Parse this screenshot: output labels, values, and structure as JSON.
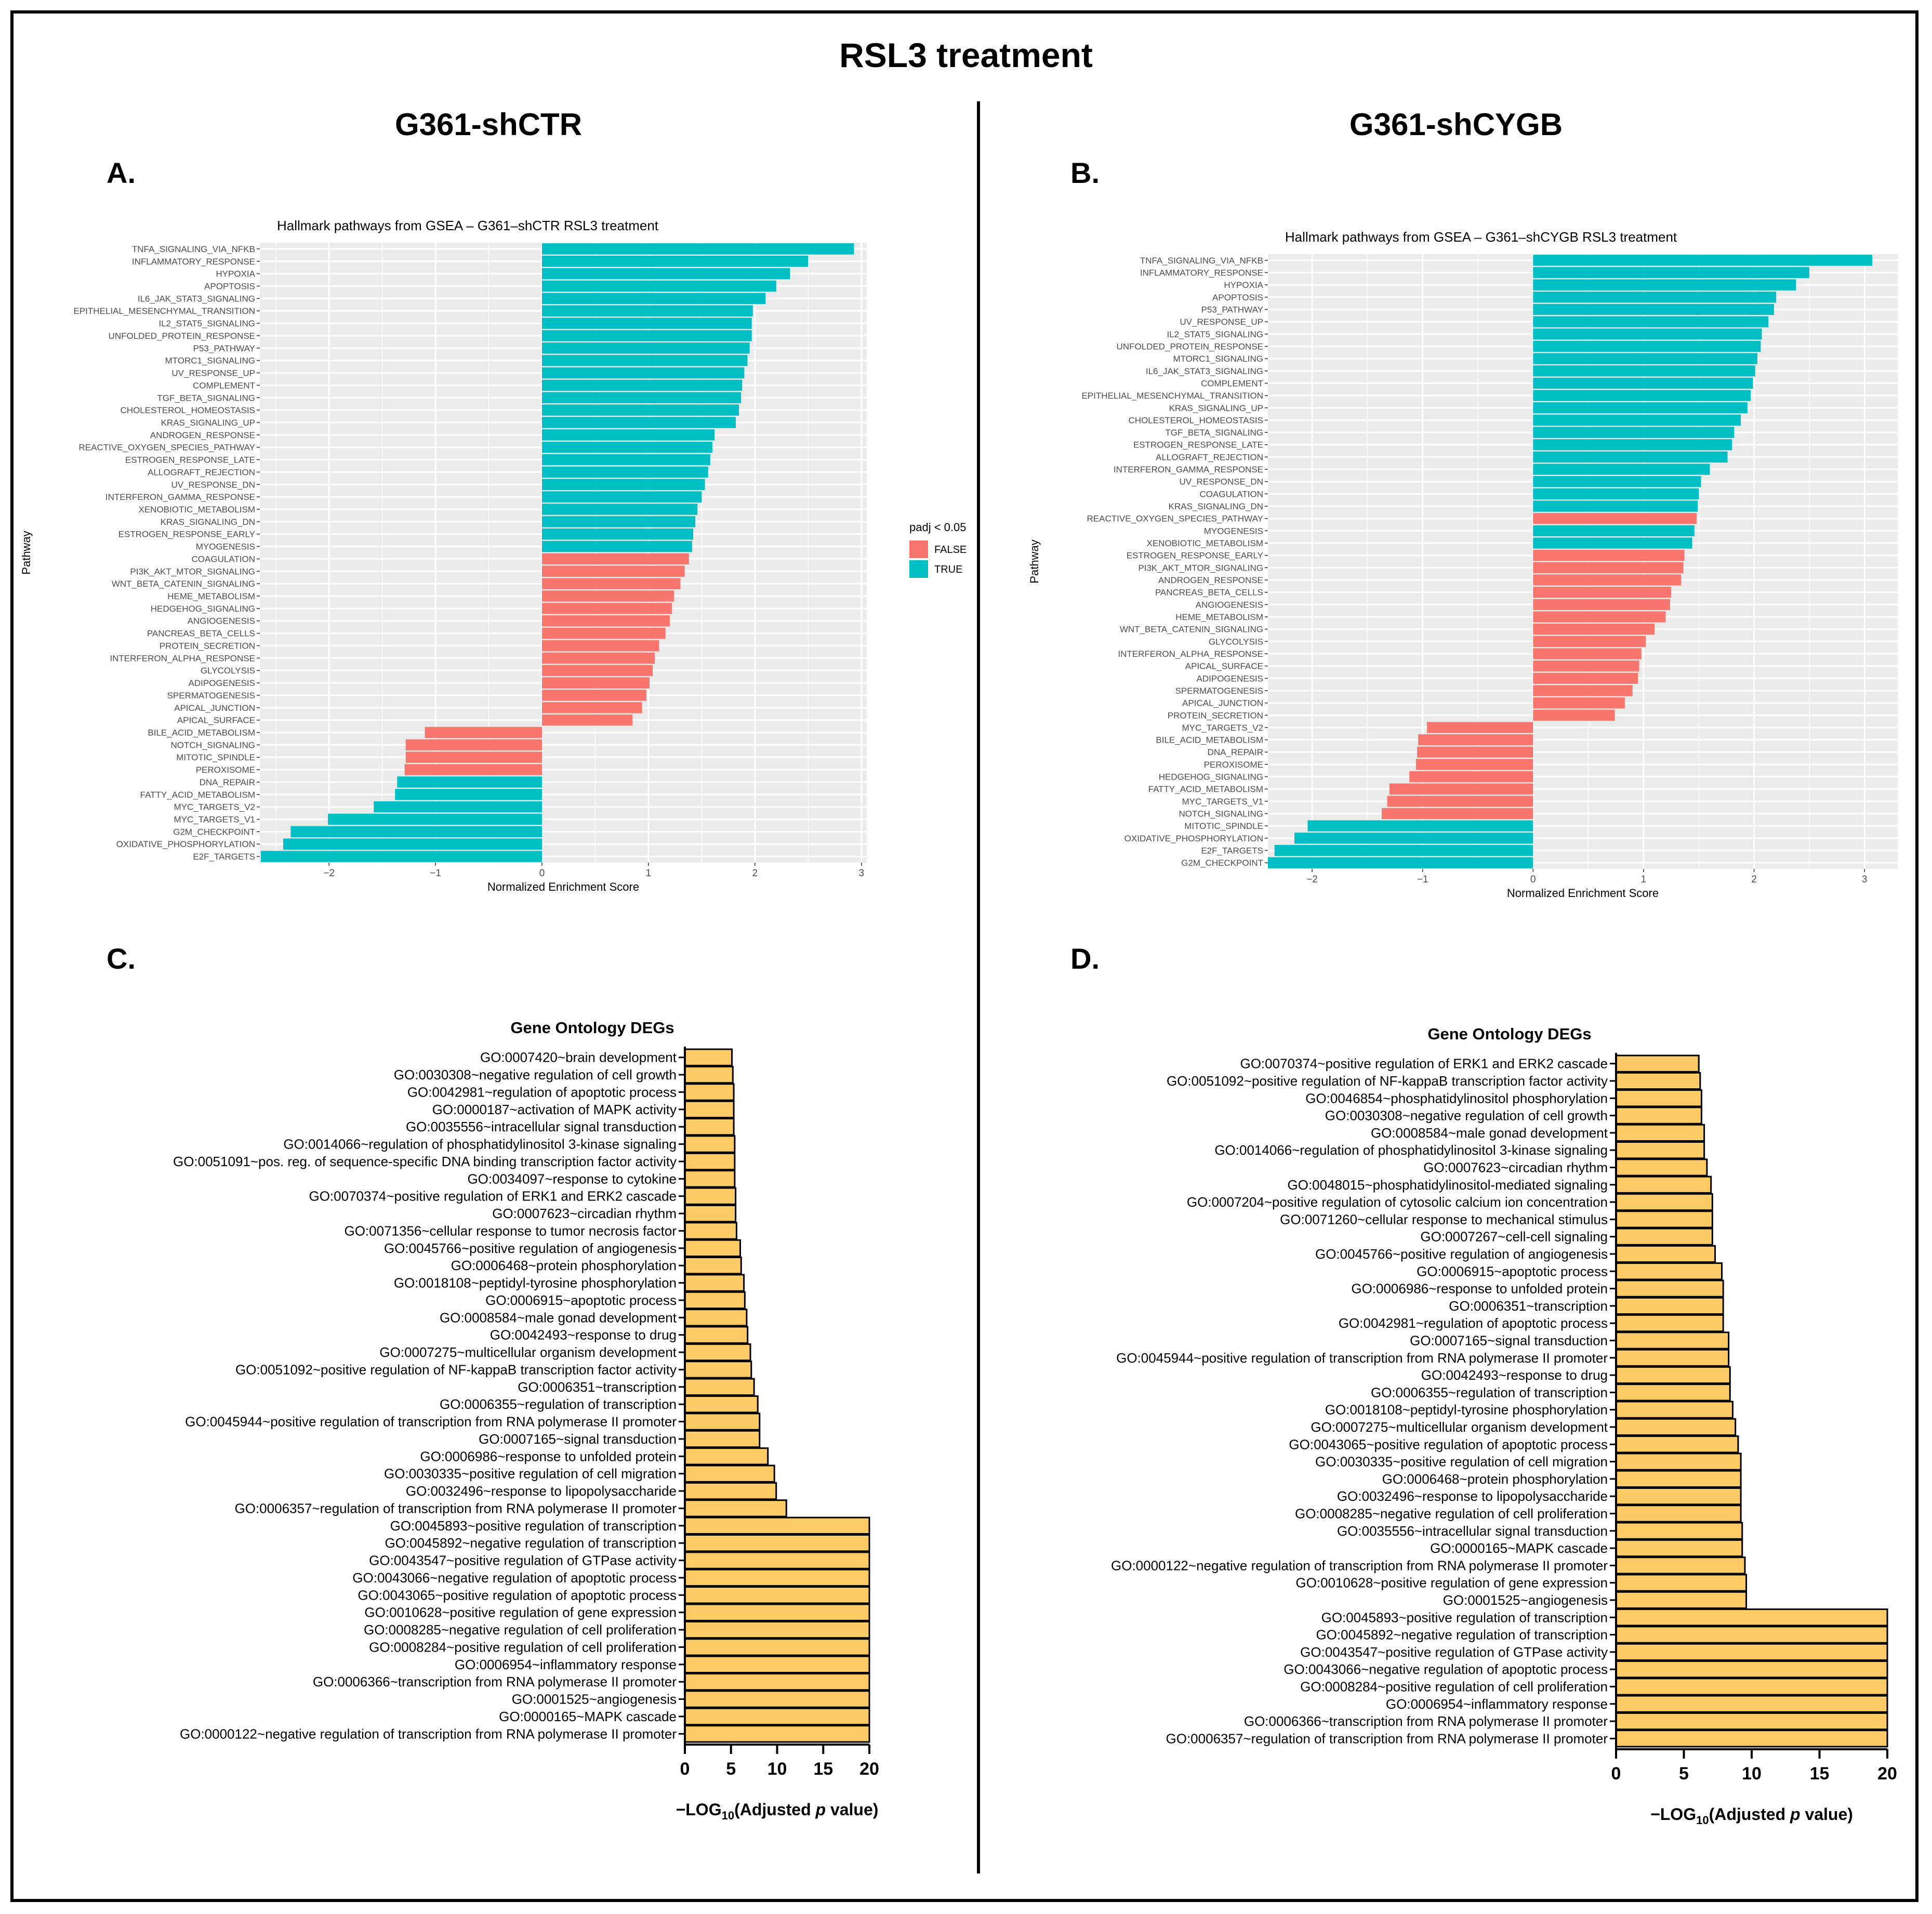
{
  "header": {
    "title": "RSL3 treatment",
    "left_column": "G361-shCTR",
    "right_column": "G361-shCYGB"
  },
  "panels": {
    "a": "A.",
    "b": "B.",
    "c": "C.",
    "d": "D."
  },
  "colors": {
    "padj_false": "#F8766D",
    "padj_true": "#00BFC4",
    "go_bar": "#FFCB66",
    "panel_bg": "#EBEBEB",
    "gridline": "#FFFFFF"
  },
  "chart_data": [
    {
      "id": "gsea-shctr",
      "type": "bar",
      "orientation": "horizontal",
      "title": "Hallmark pathways from GSEA – G361–shCTR RSL3 treatment",
      "xlabel": "Normalized Enrichment Score",
      "ylabel": "Pathway",
      "xlim": [
        -2.65,
        3.05
      ],
      "xticks": [
        -2,
        -1,
        0,
        1,
        2,
        3
      ],
      "xtick_labels": [
        "−2",
        "−1",
        "0",
        "1",
        "2",
        "3"
      ],
      "grid": true,
      "legend": {
        "title": "padj < 0.05",
        "entries": [
          "FALSE",
          "TRUE"
        ],
        "position": "right"
      },
      "categories": [
        "TNFA_SIGNALING_VIA_NFKB",
        "INFLAMMATORY_RESPONSE",
        "HYPOXIA",
        "APOPTOSIS",
        "IL6_JAK_STAT3_SIGNALING",
        "EPITHELIAL_MESENCHYMAL_TRANSITION",
        "IL2_STAT5_SIGNALING",
        "UNFOLDED_PROTEIN_RESPONSE",
        "P53_PATHWAY",
        "MTORC1_SIGNALING",
        "UV_RESPONSE_UP",
        "COMPLEMENT",
        "TGF_BETA_SIGNALING",
        "CHOLESTEROL_HOMEOSTASIS",
        "KRAS_SIGNALING_UP",
        "ANDROGEN_RESPONSE",
        "REACTIVE_OXYGEN_SPECIES_PATHWAY",
        "ESTROGEN_RESPONSE_LATE",
        "ALLOGRAFT_REJECTION",
        "UV_RESPONSE_DN",
        "INTERFERON_GAMMA_RESPONSE",
        "XENOBIOTIC_METABOLISM",
        "KRAS_SIGNALING_DN",
        "ESTROGEN_RESPONSE_EARLY",
        "MYOGENESIS",
        "COAGULATION",
        "PI3K_AKT_MTOR_SIGNALING",
        "WNT_BETA_CATENIN_SIGNALING",
        "HEME_METABOLISM",
        "HEDGEHOG_SIGNALING",
        "ANGIOGENESIS",
        "PANCREAS_BETA_CELLS",
        "PROTEIN_SECRETION",
        "INTERFERON_ALPHA_RESPONSE",
        "GLYCOLYSIS",
        "ADIPOGENESIS",
        "SPERMATOGENESIS",
        "APICAL_JUNCTION",
        "APICAL_SURFACE",
        "BILE_ACID_METABOLISM",
        "NOTCH_SIGNALING",
        "MITOTIC_SPINDLE",
        "PEROXISOME",
        "DNA_REPAIR",
        "FATTY_ACID_METABOLISM",
        "MYC_TARGETS_V2",
        "MYC_TARGETS_V1",
        "G2M_CHECKPOINT",
        "OXIDATIVE_PHOSPHORYLATION",
        "E2F_TARGETS"
      ],
      "values": [
        2.93,
        2.5,
        2.33,
        2.2,
        2.1,
        1.98,
        1.97,
        1.97,
        1.95,
        1.93,
        1.9,
        1.88,
        1.87,
        1.85,
        1.82,
        1.62,
        1.6,
        1.58,
        1.56,
        1.53,
        1.5,
        1.46,
        1.44,
        1.42,
        1.41,
        1.38,
        1.34,
        1.3,
        1.24,
        1.22,
        1.2,
        1.16,
        1.1,
        1.06,
        1.04,
        1.01,
        0.98,
        0.94,
        0.85,
        -1.1,
        -1.28,
        -1.28,
        -1.29,
        -1.36,
        -1.38,
        -1.58,
        -2.01,
        -2.36,
        -2.43,
        -2.64
      ],
      "significant": [
        true,
        true,
        true,
        true,
        true,
        true,
        true,
        true,
        true,
        true,
        true,
        true,
        true,
        true,
        true,
        true,
        true,
        true,
        true,
        true,
        true,
        true,
        true,
        true,
        true,
        false,
        false,
        false,
        false,
        false,
        false,
        false,
        false,
        false,
        false,
        false,
        false,
        false,
        false,
        false,
        false,
        false,
        false,
        true,
        true,
        true,
        true,
        true,
        true,
        true
      ]
    },
    {
      "id": "gsea-shcygb",
      "type": "bar",
      "orientation": "horizontal",
      "title": "Hallmark pathways from GSEA – G361–shCYGB RSL3 treatment",
      "xlabel": "Normalized Enrichment Score",
      "ylabel": "Pathway",
      "xlim": [
        -2.4,
        3.3
      ],
      "xticks": [
        -2,
        -1,
        0,
        1,
        2,
        3
      ],
      "xtick_labels": [
        "−2",
        "−1",
        "0",
        "1",
        "2",
        "3"
      ],
      "grid": true,
      "categories": [
        "TNFA_SIGNALING_VIA_NFKB",
        "INFLAMMATORY_RESPONSE",
        "HYPOXIA",
        "APOPTOSIS",
        "P53_PATHWAY",
        "UV_RESPONSE_UP",
        "IL2_STAT5_SIGNALING",
        "UNFOLDED_PROTEIN_RESPONSE",
        "MTORC1_SIGNALING",
        "IL6_JAK_STAT3_SIGNALING",
        "COMPLEMENT",
        "EPITHELIAL_MESENCHYMAL_TRANSITION",
        "KRAS_SIGNALING_UP",
        "CHOLESTEROL_HOMEOSTASIS",
        "TGF_BETA_SIGNALING",
        "ESTROGEN_RESPONSE_LATE",
        "ALLOGRAFT_REJECTION",
        "INTERFERON_GAMMA_RESPONSE",
        "UV_RESPONSE_DN",
        "COAGULATION",
        "KRAS_SIGNALING_DN",
        "REACTIVE_OXYGEN_SPECIES_PATHWAY",
        "MYOGENESIS",
        "XENOBIOTIC_METABOLISM",
        "ESTROGEN_RESPONSE_EARLY",
        "PI3K_AKT_MTOR_SIGNALING",
        "ANDROGEN_RESPONSE",
        "PANCREAS_BETA_CELLS",
        "ANGIOGENESIS",
        "HEME_METABOLISM",
        "WNT_BETA_CATENIN_SIGNALING",
        "GLYCOLYSIS",
        "INTERFERON_ALPHA_RESPONSE",
        "APICAL_SURFACE",
        "ADIPOGENESIS",
        "SPERMATOGENESIS",
        "APICAL_JUNCTION",
        "PROTEIN_SECRETION",
        "MYC_TARGETS_V2",
        "BILE_ACID_METABOLISM",
        "DNA_REPAIR",
        "PEROXISOME",
        "HEDGEHOG_SIGNALING",
        "FATTY_ACID_METABOLISM",
        "MYC_TARGETS_V1",
        "NOTCH_SIGNALING",
        "MITOTIC_SPINDLE",
        "OXIDATIVE_PHOSPHORYLATION",
        "E2F_TARGETS",
        "G2M_CHECKPOINT"
      ],
      "values": [
        3.07,
        2.5,
        2.38,
        2.2,
        2.18,
        2.13,
        2.07,
        2.06,
        2.03,
        2.01,
        1.99,
        1.97,
        1.94,
        1.88,
        1.82,
        1.8,
        1.76,
        1.6,
        1.52,
        1.5,
        1.49,
        1.48,
        1.46,
        1.44,
        1.37,
        1.36,
        1.34,
        1.25,
        1.24,
        1.2,
        1.1,
        1.02,
        0.98,
        0.96,
        0.95,
        0.9,
        0.83,
        0.74,
        -0.96,
        -1.04,
        -1.05,
        -1.06,
        -1.12,
        -1.3,
        -1.32,
        -1.37,
        -2.04,
        -2.16,
        -2.34,
        -2.4
      ],
      "significant": [
        true,
        true,
        true,
        true,
        true,
        true,
        true,
        true,
        true,
        true,
        true,
        true,
        true,
        true,
        true,
        true,
        true,
        true,
        true,
        true,
        true,
        false,
        true,
        true,
        false,
        false,
        false,
        false,
        false,
        false,
        false,
        false,
        false,
        false,
        false,
        false,
        false,
        false,
        false,
        false,
        false,
        false,
        false,
        false,
        false,
        false,
        true,
        true,
        true,
        true
      ]
    },
    {
      "id": "go-shctr",
      "type": "bar",
      "orientation": "horizontal",
      "title": "Gene Ontology DEGs",
      "xlabel": "−LOG",
      "xlabel_sub": "10",
      "xlabel_tail": "(Adjusted ",
      "xlabel_p": "p",
      "xlabel_end": " value)",
      "xlim": [
        0,
        20
      ],
      "xticks": [
        0,
        5,
        10,
        15,
        20
      ],
      "categories": [
        "GO:0007420~brain development",
        "GO:0030308~negative regulation of cell growth",
        "GO:0042981~regulation of apoptotic process",
        "GO:0000187~activation of MAPK activity",
        "GO:0035556~intracellular signal transduction",
        "GO:0014066~regulation of phosphatidylinositol 3-kinase signaling",
        "GO:0051091~pos. reg. of sequence-specific DNA binding transcription factor activity",
        "GO:0034097~response to cytokine",
        "GO:0070374~positive regulation of ERK1 and ERK2 cascade",
        "GO:0007623~circadian rhythm",
        "GO:0071356~cellular response to tumor necrosis factor",
        "GO:0045766~positive regulation of angiogenesis",
        "GO:0006468~protein phosphorylation",
        "GO:0018108~peptidyl-tyrosine phosphorylation",
        "GO:0006915~apoptotic process",
        "GO:0008584~male gonad development",
        "GO:0042493~response to drug",
        "GO:0007275~multicellular organism development",
        "GO:0051092~positive regulation of NF-kappaB transcription factor activity",
        "GO:0006351~transcription",
        "GO:0006355~regulation of transcription",
        "GO:0045944~positive regulation of transcription from RNA polymerase II promoter",
        "GO:0007165~signal transduction",
        "GO:0006986~response to unfolded protein",
        "GO:0030335~positive regulation of cell migration",
        "GO:0032496~response to lipopolysaccharide",
        "GO:0006357~regulation of transcription from RNA polymerase II promoter",
        "GO:0045893~positive regulation of transcription",
        "GO:0045892~negative regulation of transcription",
        "GO:0043547~positive regulation of GTPase activity",
        "GO:0043066~negative regulation of apoptotic process",
        "GO:0043065~positive regulation of apoptotic process",
        "GO:0010628~positive regulation of gene expression",
        "GO:0008285~negative regulation of cell proliferation",
        "GO:0008284~positive regulation of cell proliferation",
        "GO:0006954~inflammatory response",
        "GO:0006366~transcription from RNA polymerase II promoter",
        "GO:0001525~angiogenesis",
        "GO:0000165~MAPK cascade",
        "GO:0000122~negative regulation of transcription from RNA polymerase II promoter"
      ],
      "values": [
        5.1,
        5.2,
        5.3,
        5.3,
        5.3,
        5.4,
        5.4,
        5.4,
        5.5,
        5.5,
        5.6,
        6.0,
        6.1,
        6.4,
        6.5,
        6.7,
        6.8,
        7.1,
        7.2,
        7.5,
        7.9,
        8.1,
        8.1,
        9.0,
        9.7,
        9.9,
        11.0,
        20,
        20,
        20,
        20,
        20,
        20,
        20,
        20,
        20,
        20,
        20,
        20,
        20
      ]
    },
    {
      "id": "go-shcygb",
      "type": "bar",
      "orientation": "horizontal",
      "title": "Gene Ontology DEGs",
      "xlabel": "−LOG",
      "xlabel_sub": "10",
      "xlabel_tail": "(Adjusted ",
      "xlabel_p": "p",
      "xlabel_end": " value)",
      "xlim": [
        0,
        20
      ],
      "xticks": [
        0,
        5,
        10,
        15,
        20
      ],
      "categories": [
        "GO:0070374~positive regulation of ERK1 and ERK2 cascade",
        "GO:0051092~positive regulation of NF-kappaB transcription factor activity",
        "GO:0046854~phosphatidylinositol phosphorylation",
        "GO:0030308~negative regulation of cell growth",
        "GO:0008584~male gonad development",
        "GO:0014066~regulation of phosphatidylinositol 3-kinase signaling",
        "GO:0007623~circadian rhythm",
        "GO:0048015~phosphatidylinositol-mediated signaling",
        "GO:0007204~positive regulation of cytosolic calcium ion concentration",
        "GO:0071260~cellular response to mechanical stimulus",
        "GO:0007267~cell-cell signaling",
        "GO:0045766~positive regulation of angiogenesis",
        "GO:0006915~apoptotic process",
        "GO:0006986~response to unfolded protein",
        "GO:0006351~transcription",
        "GO:0042981~regulation of apoptotic process",
        "GO:0007165~signal transduction",
        "GO:0045944~positive regulation of transcription from RNA polymerase II promoter",
        "GO:0042493~response to drug",
        "GO:0006355~regulation of transcription",
        "GO:0018108~peptidyl-tyrosine phosphorylation",
        "GO:0007275~multicellular organism development",
        "GO:0043065~positive regulation of apoptotic process",
        "GO:0030335~positive regulation of cell migration",
        "GO:0006468~protein phosphorylation",
        "GO:0032496~response to lipopolysaccharide",
        "GO:0008285~negative regulation of cell proliferation",
        "GO:0035556~intracellular signal transduction",
        "GO:0000165~MAPK cascade",
        "GO:0000122~negative regulation of transcription from RNA polymerase II promoter",
        "GO:0010628~positive regulation of gene expression",
        "GO:0001525~angiogenesis",
        "GO:0045893~positive regulation of transcription",
        "GO:0045892~negative regulation of transcription",
        "GO:0043547~positive regulation of GTPase activity",
        "GO:0043066~negative regulation of apoptotic process",
        "GO:0008284~positive regulation of cell proliferation",
        "GO:0006954~inflammatory response",
        "GO:0006366~transcription from RNA polymerase II promoter",
        "GO:0006357~regulation of transcription from RNA polymerase II promoter"
      ],
      "values": [
        6.1,
        6.2,
        6.3,
        6.3,
        6.5,
        6.5,
        6.7,
        7.0,
        7.1,
        7.1,
        7.1,
        7.3,
        7.8,
        7.9,
        7.9,
        7.9,
        8.3,
        8.3,
        8.4,
        8.4,
        8.6,
        8.8,
        9.0,
        9.2,
        9.2,
        9.2,
        9.2,
        9.3,
        9.3,
        9.5,
        9.6,
        9.6,
        20,
        20,
        20,
        20,
        20,
        20,
        20,
        20
      ]
    }
  ]
}
